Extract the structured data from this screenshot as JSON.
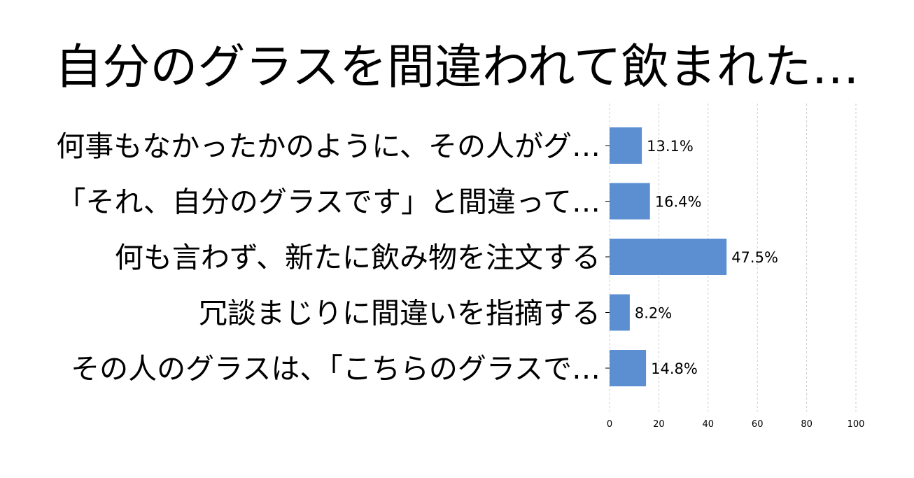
{
  "chart_data": {
    "type": "bar",
    "orientation": "horizontal",
    "title": "自分のグラスを間違われて飲まれた…",
    "categories": [
      "何事もなかったかのように、その人がグ…",
      "「それ、自分のグラスです」と間違って…",
      "何も言わず、新たに飲み物を注文する",
      "冗談まじりに間違いを指摘する",
      "その人のグラスは、「こちらのグラスで…"
    ],
    "values": [
      13.1,
      16.4,
      47.5,
      8.2,
      14.8
    ],
    "value_labels": [
      "13.1%",
      "16.4%",
      "47.5%",
      "8.2%",
      "14.8%"
    ],
    "xlim": [
      0,
      100
    ],
    "xticks": [
      "0",
      "20",
      "40",
      "60",
      "80",
      "100"
    ],
    "grid": true,
    "bar_color": "#5b8fd2",
    "grid_color": "#cccccc"
  }
}
